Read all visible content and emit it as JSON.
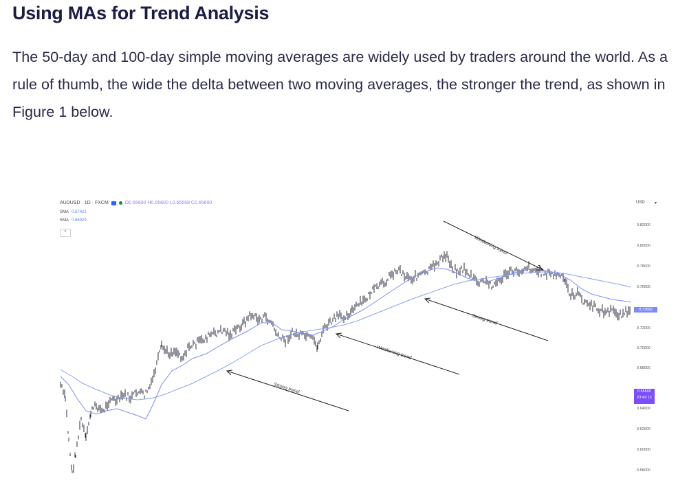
{
  "article": {
    "heading": "Using MAs for Trend Analysis",
    "paragraph": "The 50-day and 100-day simple moving averages are widely used by traders around the world. As a rule of thumb, the wide the delta between two moving averages, the stronger the trend, as shown in Figure 1 below."
  },
  "chart": {
    "symbol_line": "AUDUSD · 1D · FXCM",
    "ohlc": "O0.65600 H0.65600 L0.65568 C0.65600",
    "sma1_label": "SMA",
    "sma1_value": "0.67421",
    "sma2_label": "SMA",
    "sma2_value": "0.66929",
    "collapse": "^",
    "currency": "USD",
    "currency_caret": "▾",
    "price_ticks": [
      "0.82000",
      "0.80000",
      "0.78000",
      "0.76000",
      "0.72000",
      "0.70000",
      "0.68000",
      "0.64000",
      "0.62000",
      "0.60000",
      "0.58000"
    ],
    "price_tag": "0.73892",
    "current_price": "0.65600",
    "current_time": "23:42:13",
    "annotations": [
      "Weakening trend",
      "Strong trend",
      "Weakening trend",
      "Strong trend"
    ],
    "colors": {
      "candles": "#2a2a3a",
      "sma_fast": "#7b8cf7",
      "sma_slow": "#8aa2f0",
      "arrow": "#222222",
      "current_tag": "#7c4dff"
    }
  }
}
